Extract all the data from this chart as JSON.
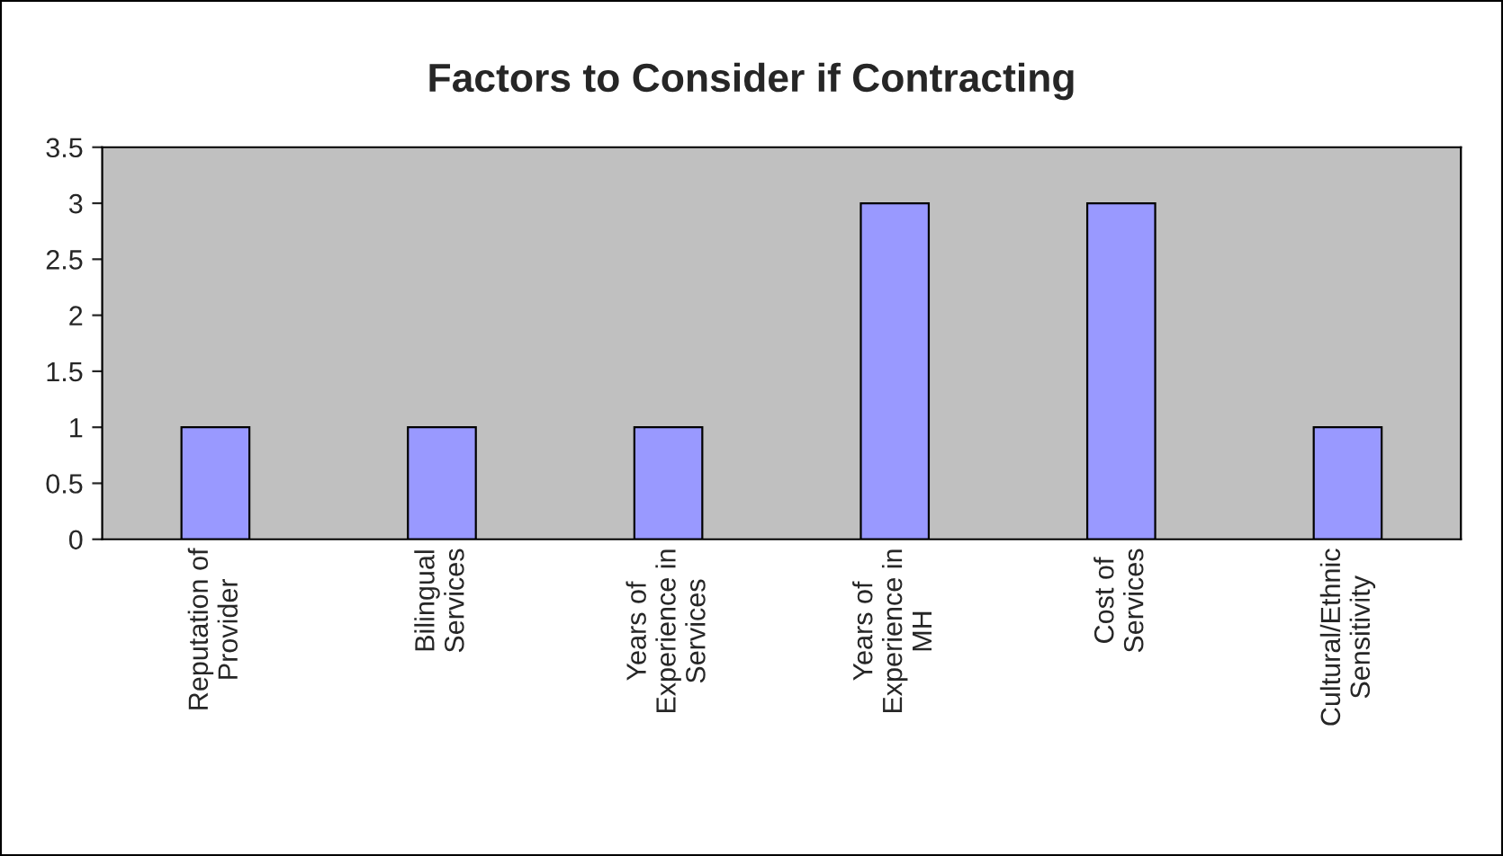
{
  "chart_data": {
    "type": "bar",
    "title": "Factors to Consider if Contracting",
    "categories": [
      "Reputation of\nProvider",
      "Bilingual\nServices",
      "Years of\nExperience in\nServices",
      "Years of\nExperience in\nMH",
      "Cost of\nServices",
      "Cultural/Ethnic\nSensitivity"
    ],
    "values": [
      1,
      1,
      1,
      3,
      3,
      1
    ],
    "color": "#9999ff",
    "ylim": [
      0,
      3.5
    ],
    "yticks": [
      0,
      0.5,
      1,
      1.5,
      2,
      2.5,
      3,
      3.5
    ],
    "grid": false,
    "legend": false
  }
}
